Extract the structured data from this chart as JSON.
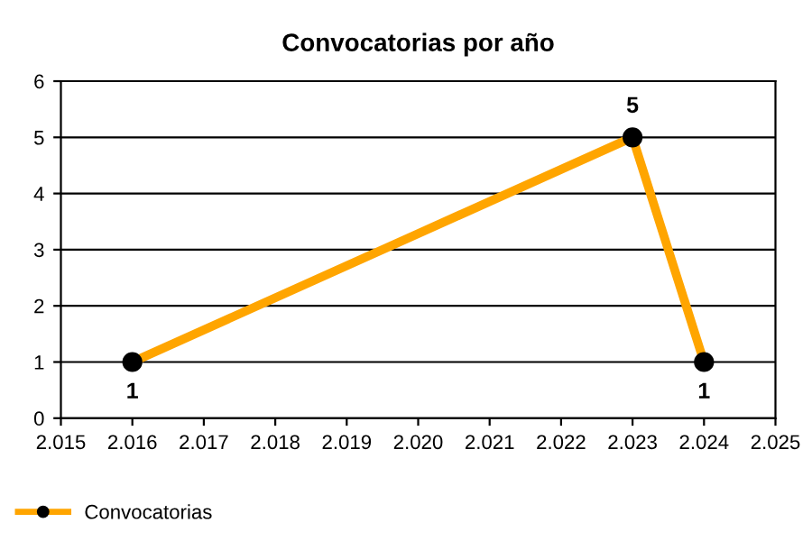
{
  "chart_data": {
    "type": "line",
    "title": "Convocatorias por año",
    "x": [
      2016,
      2023,
      2024
    ],
    "series": [
      {
        "name": "Convocatorias",
        "color": "#ffa500",
        "values": [
          1,
          5,
          1
        ]
      }
    ],
    "xlim": [
      2015,
      2025
    ],
    "xticks": [
      {
        "value": 2015,
        "label": "2.015"
      },
      {
        "value": 2016,
        "label": "2.016"
      },
      {
        "value": 2017,
        "label": "2.017"
      },
      {
        "value": 2018,
        "label": "2.018"
      },
      {
        "value": 2019,
        "label": "2.019"
      },
      {
        "value": 2020,
        "label": "2.020"
      },
      {
        "value": 2021,
        "label": "2.021"
      },
      {
        "value": 2022,
        "label": "2.022"
      },
      {
        "value": 2023,
        "label": "2.023"
      },
      {
        "value": 2024,
        "label": "2.024"
      },
      {
        "value": 2025,
        "label": "2.025"
      }
    ],
    "ylim": [
      0,
      6
    ],
    "yticks": [
      0,
      1,
      2,
      3,
      4,
      5,
      6
    ],
    "grid": "y",
    "legend": "bottom left",
    "marker": "circle",
    "line_style": "solid",
    "data_labels": true
  }
}
